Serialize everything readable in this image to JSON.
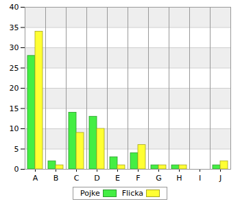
{
  "chart_data": {
    "type": "bar",
    "categories": [
      "A",
      "B",
      "C",
      "D",
      "E",
      "F",
      "G",
      "H",
      "I",
      "J"
    ],
    "series": [
      {
        "name": "Pojke",
        "color": "#44ee44",
        "values": [
          28,
          2,
          14,
          13,
          3,
          4,
          1,
          1,
          0,
          1
        ]
      },
      {
        "name": "Flicka",
        "color": "#ffff33",
        "values": [
          34,
          1,
          9,
          10,
          1,
          6,
          1,
          1,
          0,
          2
        ]
      }
    ],
    "ylim": [
      0,
      40
    ],
    "yticks": [
      0,
      5,
      10,
      15,
      20,
      25,
      30,
      35,
      40
    ],
    "grid": true,
    "legend": "bottom"
  }
}
